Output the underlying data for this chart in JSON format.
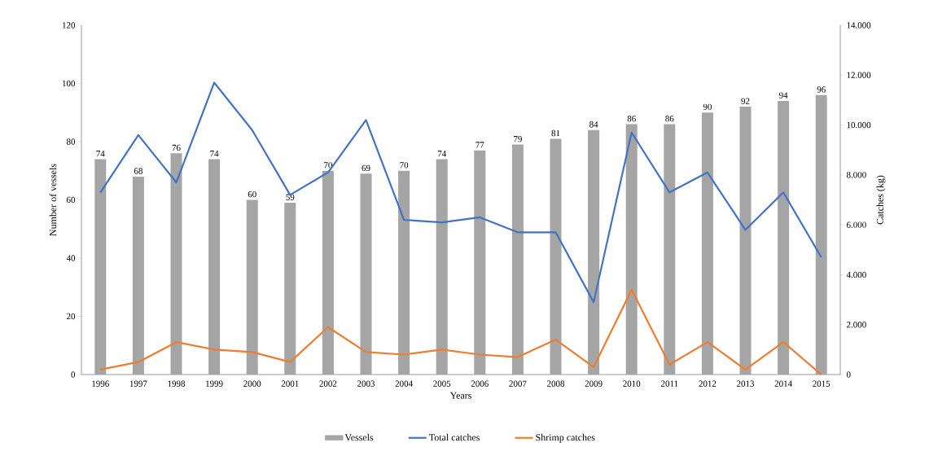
{
  "chart_data": {
    "type": "bar",
    "xlabel": "Years",
    "ylabel": "Number of vessels",
    "y2label": "Catches (kg)",
    "categories": [
      "1996",
      "1997",
      "1998",
      "1999",
      "2000",
      "2001",
      "2002",
      "2003",
      "2004",
      "2005",
      "2006",
      "2007",
      "2008",
      "2009",
      "2010",
      "2011",
      "2012",
      "2013",
      "2014",
      "2015"
    ],
    "series": [
      {
        "name": "Vessels",
        "color": "#a5a5a5",
        "values": [
          74,
          68,
          76,
          74,
          60,
          59,
          70,
          69,
          70,
          74,
          77,
          79,
          81,
          84,
          86,
          86,
          90,
          92,
          94,
          96
        ],
        "value_labels": [
          "74",
          "68",
          "76",
          "74",
          "60",
          "59",
          "70",
          "69",
          "70",
          "74",
          "77",
          "79",
          "81",
          "84",
          "86",
          "86",
          "90",
          "92",
          "94",
          "96"
        ]
      },
      {
        "name": "Total catches",
        "type": "line",
        "axis": "y2",
        "color": "#4472c4",
        "values": [
          7300,
          9600,
          7700,
          11700,
          9800,
          7200,
          8100,
          10200,
          6200,
          6100,
          6300,
          5700,
          5700,
          2900,
          9700,
          7300,
          8100,
          5800,
          7300,
          4700
        ]
      },
      {
        "name": "Shrimp catches",
        "type": "line",
        "axis": "y2",
        "color": "#ed7d31",
        "values": [
          200,
          500,
          1300,
          1000,
          900,
          500,
          1900,
          900,
          800,
          1000,
          800,
          700,
          1400,
          300,
          3400,
          400,
          1300,
          200,
          1300,
          0
        ]
      }
    ],
    "ylim": [
      0,
      120
    ],
    "yticks": [
      0,
      20,
      40,
      60,
      80,
      100,
      120
    ],
    "y2lim": [
      0,
      14000
    ],
    "y2ticks": [
      0,
      {
        "value": 2000,
        "label": "2.000"
      },
      {
        "value": 4000,
        "label": "4.000"
      },
      {
        "value": 6000,
        "label": "6.000"
      },
      {
        "value": 8000,
        "label": "8.000"
      },
      {
        "value": 10000,
        "label": "10.000"
      },
      {
        "value": 12000,
        "label": "12.000"
      },
      {
        "value": 14000,
        "label": "14.000"
      }
    ],
    "legend": "bottom"
  }
}
